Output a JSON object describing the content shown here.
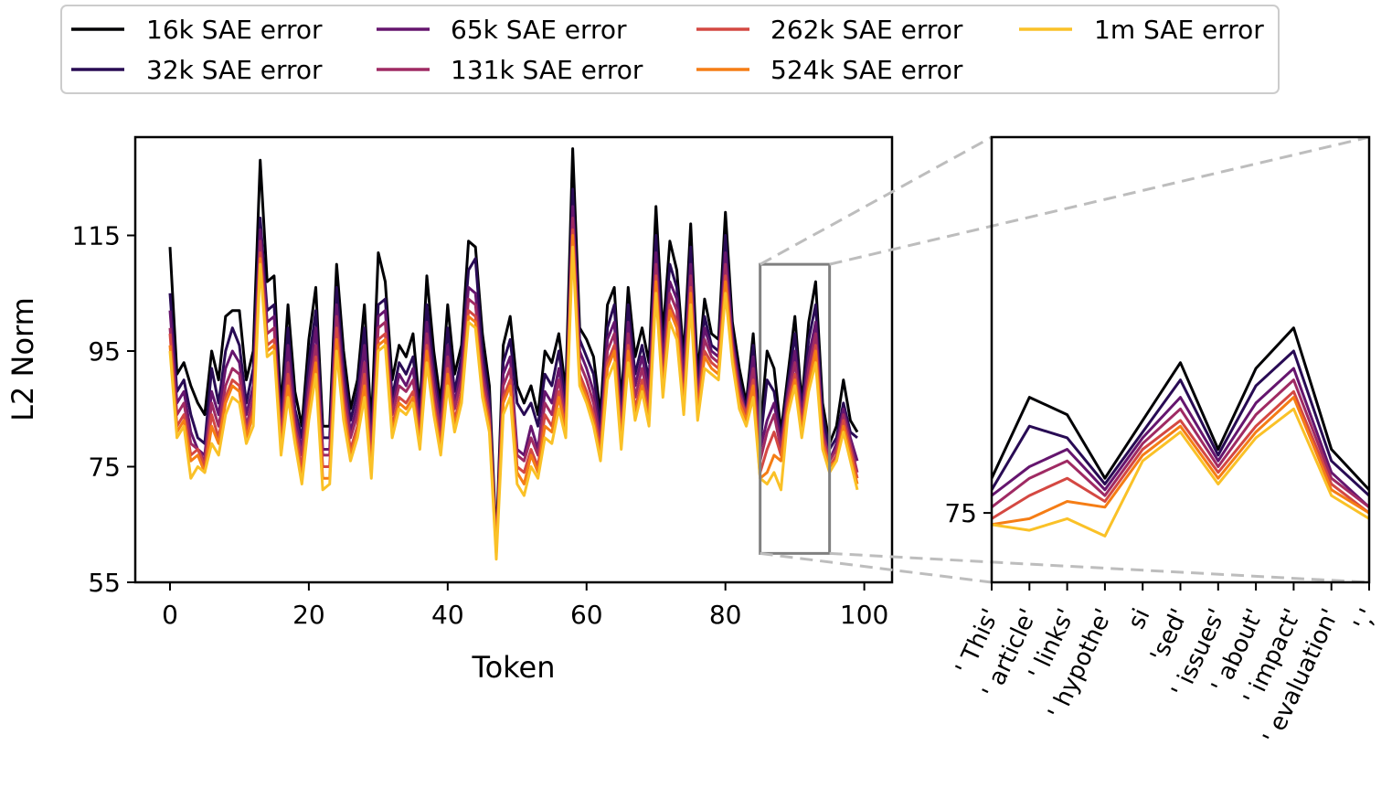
{
  "chart_data": [
    {
      "id": "main",
      "type": "line",
      "xlabel": "Token",
      "ylabel": "L2 Norm",
      "xlim": [
        -5,
        104
      ],
      "ylim": [
        55,
        132
      ],
      "xticks": [
        0,
        20,
        40,
        60,
        80,
        100
      ],
      "yticks": [
        55,
        75,
        95,
        115
      ],
      "zoom_box": {
        "x": [
          85,
          95
        ],
        "y": [
          60,
          110
        ]
      }
    },
    {
      "id": "zoom",
      "type": "line",
      "x_range": [
        85,
        95
      ],
      "ylim": [
        63,
        140
      ],
      "yticks": [
        75
      ],
      "categories": [
        "' This'",
        "' article'",
        "' links'",
        "' hypothe'",
        "si",
        "'sed'",
        "' issues'",
        "' about'",
        "' impact'",
        "' evaluation'",
        "','"
      ]
    }
  ],
  "legend": {
    "placement": "top",
    "entries": [
      "16k SAE error",
      "32k SAE error",
      "65k SAE error",
      "131k SAE error",
      "262k SAE error",
      "524k SAE error",
      "1m SAE error"
    ]
  },
  "series": [
    {
      "name": "16k SAE error",
      "color": "#000004",
      "values": [
        113,
        91,
        93,
        89,
        86,
        84,
        95,
        90,
        101,
        102,
        102,
        90,
        95,
        128,
        107,
        108,
        85,
        103,
        88,
        82,
        97,
        106,
        82,
        82,
        110,
        95,
        85,
        90,
        103,
        82,
        112,
        107,
        90,
        96,
        94,
        98,
        85,
        108,
        95,
        86,
        103,
        91,
        96,
        114,
        113,
        98,
        89,
        62,
        96,
        101,
        89,
        86,
        89,
        84,
        95,
        93,
        98,
        88,
        130,
        99,
        97,
        94,
        84,
        103,
        106,
        86,
        106,
        94,
        99,
        93,
        120,
        98,
        114,
        109,
        94,
        117,
        91,
        104,
        98,
        97,
        119,
        100,
        92,
        86,
        98,
        81,
        95,
        92,
        81,
        91,
        101,
        86,
        100,
        107,
        86,
        79,
        82,
        90,
        83,
        81
      ]
    },
    {
      "name": "32k SAE error",
      "color": "#280B54",
      "values": [
        105,
        88,
        90,
        84,
        80,
        79,
        92,
        86,
        95,
        99,
        96,
        86,
        92,
        118,
        102,
        103,
        83,
        99,
        85,
        80,
        93,
        102,
        80,
        80,
        106,
        92,
        83,
        88,
        99,
        80,
        103,
        104,
        87,
        93,
        91,
        94,
        84,
        103,
        92,
        84,
        99,
        88,
        94,
        109,
        111,
        95,
        87,
        61,
        93,
        97,
        86,
        84,
        86,
        82,
        91,
        89,
        95,
        86,
        123,
        97,
        94,
        91,
        82,
        99,
        103,
        84,
        103,
        91,
        96,
        90,
        115,
        95,
        110,
        106,
        92,
        113,
        89,
        101,
        96,
        95,
        115,
        98,
        90,
        85,
        96,
        79,
        90,
        88,
        80,
        89,
        98,
        85,
        97,
        103,
        84,
        78,
        80,
        86,
        81,
        80
      ]
    },
    {
      "name": "65k SAE error",
      "color": "#65156E",
      "values": [
        102,
        86,
        88,
        81,
        78,
        77,
        88,
        84,
        92,
        95,
        93,
        84,
        89,
        116,
        100,
        101,
        81,
        96,
        84,
        78,
        90,
        99,
        78,
        78,
        103,
        90,
        81,
        86,
        96,
        78,
        101,
        102,
        85,
        91,
        89,
        92,
        82,
        100,
        90,
        82,
        96,
        86,
        92,
        106,
        105,
        93,
        85,
        61,
        91,
        94,
        78,
        77,
        82,
        78,
        88,
        86,
        92,
        84,
        120,
        95,
        92,
        88,
        80,
        97,
        100,
        82,
        100,
        89,
        94,
        88,
        112,
        93,
        107,
        104,
        90,
        110,
        87,
        99,
        95,
        94,
        112,
        97,
        89,
        84,
        94,
        78,
        83,
        86,
        79,
        88,
        95,
        84,
        94,
        100,
        82,
        76,
        79,
        85,
        80,
        76
      ]
    },
    {
      "name": "131k SAE error",
      "color": "#9F2A63",
      "values": [
        99,
        84,
        86,
        79,
        78,
        76,
        86,
        82,
        89,
        92,
        91,
        82,
        87,
        114,
        98,
        99,
        80,
        93,
        82,
        77,
        88,
        96,
        77,
        77,
        101,
        88,
        80,
        84,
        93,
        77,
        99,
        100,
        84,
        89,
        88,
        90,
        81,
        98,
        88,
        81,
        94,
        85,
        90,
        104,
        103,
        91,
        84,
        61,
        89,
        92,
        77,
        76,
        80,
        77,
        86,
        84,
        90,
        83,
        118,
        93,
        90,
        86,
        79,
        95,
        98,
        81,
        98,
        87,
        92,
        86,
        110,
        91,
        105,
        102,
        88,
        108,
        86,
        97,
        94,
        93,
        110,
        96,
        88,
        84,
        92,
        76,
        81,
        84,
        78,
        87,
        93,
        83,
        92,
        98,
        81,
        76,
        78,
        84,
        79,
        74
      ]
    },
    {
      "name": "262k SAE error",
      "color": "#D44842",
      "values": [
        98,
        82,
        84,
        77,
        78,
        75,
        84,
        80,
        87,
        90,
        89,
        81,
        85,
        112,
        96,
        97,
        79,
        91,
        81,
        75,
        86,
        94,
        75,
        75,
        99,
        86,
        78,
        82,
        91,
        75,
        97,
        98,
        82,
        87,
        86,
        88,
        80,
        96,
        86,
        79,
        92,
        83,
        88,
        102,
        101,
        89,
        83,
        61,
        87,
        90,
        75,
        74,
        78,
        75,
        84,
        82,
        88,
        82,
        116,
        91,
        88,
        84,
        78,
        93,
        96,
        80,
        96,
        85,
        90,
        84,
        108,
        89,
        103,
        100,
        86,
        106,
        85,
        95,
        93,
        92,
        108,
        95,
        87,
        84,
        90,
        74,
        78,
        81,
        77,
        86,
        91,
        82,
        90,
        96,
        80,
        75,
        77,
        83,
        78,
        73
      ]
    },
    {
      "name": "524k SAE error",
      "color": "#F57D15",
      "values": [
        96,
        81,
        83,
        76,
        77,
        74,
        82,
        79,
        86,
        89,
        88,
        80,
        84,
        111,
        95,
        96,
        78,
        89,
        80,
        73,
        85,
        93,
        73,
        73,
        97,
        85,
        77,
        81,
        89,
        74,
        96,
        97,
        81,
        86,
        85,
        87,
        79,
        95,
        85,
        78,
        91,
        82,
        87,
        101,
        100,
        88,
        82,
        60,
        86,
        89,
        74,
        72,
        77,
        74,
        82,
        81,
        87,
        81,
        115,
        90,
        87,
        83,
        77,
        92,
        95,
        79,
        95,
        84,
        89,
        83,
        107,
        88,
        102,
        99,
        85,
        105,
        84,
        94,
        92,
        91,
        107,
        94,
        86,
        83,
        89,
        73,
        74,
        77,
        76,
        85,
        90,
        81,
        89,
        95,
        79,
        75,
        76,
        82,
        77,
        72
      ]
    },
    {
      "name": "1m SAE error",
      "color": "#FAC127",
      "values": [
        95,
        80,
        82,
        73,
        75,
        74,
        79,
        77,
        84,
        87,
        86,
        79,
        82,
        110,
        94,
        95,
        77,
        87,
        79,
        72,
        83,
        91,
        71,
        72,
        95,
        83,
        76,
        80,
        87,
        73,
        95,
        96,
        80,
        85,
        84,
        86,
        78,
        93,
        84,
        77,
        89,
        81,
        86,
        100,
        99,
        87,
        81,
        59,
        84,
        87,
        72,
        70,
        75,
        73,
        80,
        79,
        85,
        80,
        113,
        89,
        86,
        82,
        76,
        90,
        93,
        78,
        93,
        83,
        88,
        82,
        105,
        87,
        100,
        97,
        84,
        103,
        83,
        92,
        91,
        90,
        105,
        93,
        85,
        82,
        87,
        73,
        72,
        74,
        71,
        84,
        89,
        80,
        88,
        93,
        78,
        74,
        76,
        81,
        76,
        71
      ]
    }
  ]
}
